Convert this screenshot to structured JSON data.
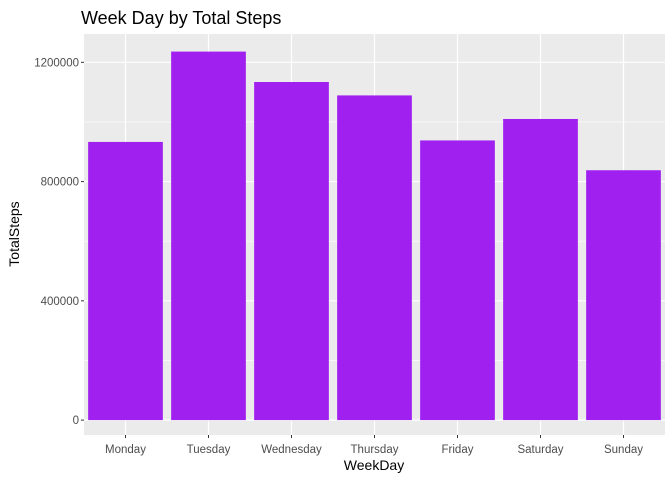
{
  "chart_data": {
    "type": "bar",
    "title": "Week Day by Total Steps",
    "xlabel": "WeekDay",
    "ylabel": "TotalSteps",
    "categories": [
      "Monday",
      "Tuesday",
      "Wednesday",
      "Thursday",
      "Friday",
      "Saturday",
      "Sunday"
    ],
    "values": [
      933000,
      1236000,
      1134000,
      1089000,
      938000,
      1010000,
      838000
    ],
    "ylim": [
      -50000,
      1295000
    ],
    "yticks": [
      0,
      400000,
      800000,
      1200000
    ],
    "ytick_labels": [
      "0",
      "400000",
      "800000",
      "1200000"
    ],
    "grid": true,
    "legend": "none",
    "colors": {
      "bar": "#a020f0",
      "panel_background": "#ebebeb",
      "grid_major": "#ffffff",
      "tick_label": "#4d4d4d"
    }
  }
}
